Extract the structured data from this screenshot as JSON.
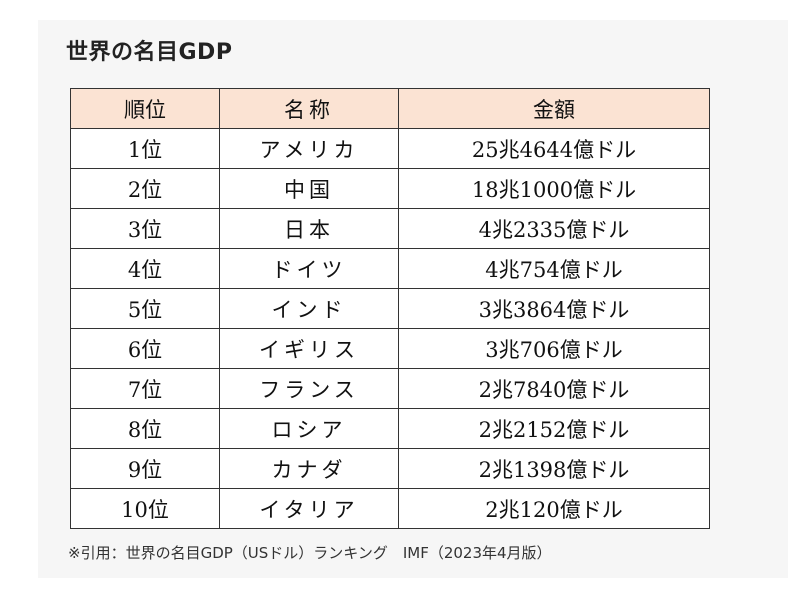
{
  "title": "世界の名目GDP",
  "table": {
    "headers": [
      "順位",
      "名称",
      "金額"
    ],
    "rows": [
      {
        "rank": "1位",
        "name": "アメリカ",
        "amount": "25兆4644億ドル"
      },
      {
        "rank": "2位",
        "name": "中国",
        "amount": "18兆1000億ドル"
      },
      {
        "rank": "3位",
        "name": "日本",
        "amount": "4兆2335億ドル"
      },
      {
        "rank": "4位",
        "name": "ドイツ",
        "amount": "4兆754億ドル"
      },
      {
        "rank": "5位",
        "name": "インド",
        "amount": "3兆3864億ドル"
      },
      {
        "rank": "6位",
        "name": "イギリス",
        "amount": "3兆706億ドル"
      },
      {
        "rank": "7位",
        "name": "フランス",
        "amount": "2兆7840億ドル"
      },
      {
        "rank": "8位",
        "name": "ロシア",
        "amount": "2兆2152億ドル"
      },
      {
        "rank": "9位",
        "name": "カナダ",
        "amount": "2兆1398億ドル"
      },
      {
        "rank": "10位",
        "name": "イタリア",
        "amount": "2兆120億ドル"
      }
    ]
  },
  "note": "※引用：世界の名目GDP（USドル）ランキング　IMF（2023年4月版）",
  "colors": {
    "header_bg": "#fbe3d3",
    "card_bg": "#f6f6f6",
    "border": "#333333"
  }
}
